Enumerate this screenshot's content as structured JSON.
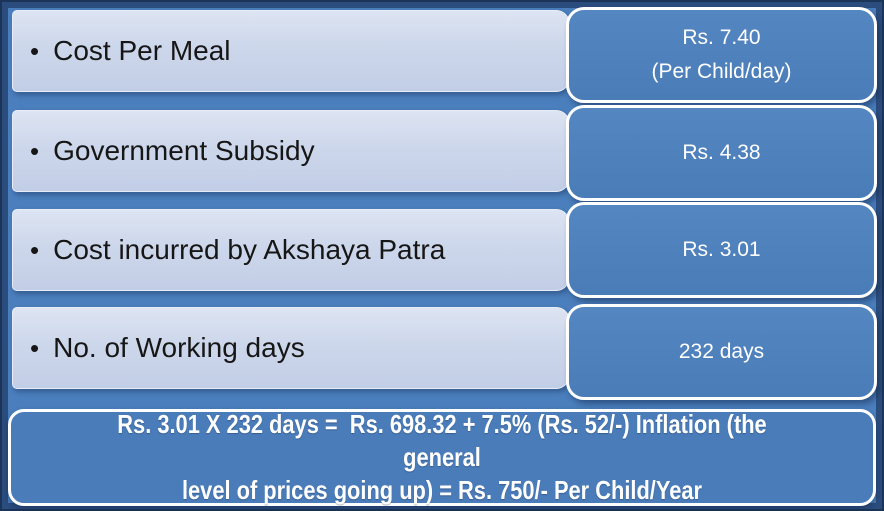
{
  "slide": {
    "bullet": "•",
    "rows": [
      {
        "label": "Cost Per Meal",
        "value_line1": "Rs. 7.40",
        "value_line2": "(Per Child/day)"
      },
      {
        "label": "Government Subsidy",
        "value_line1": "Rs. 4.38"
      },
      {
        "label": "Cost incurred by Akshaya Patra",
        "value_line1": "Rs. 3.01"
      },
      {
        "label": "No. of Working days",
        "value_line1": "232 days"
      }
    ],
    "formula": {
      "line1": "Rs. 3.01 X 232 days =  Rs. 698.32 + 7.5% (Rs. 52/-) Inflation (the general",
      "line2": "level of prices going up) = Rs. 750/- Per Child/Year"
    },
    "colors": {
      "background": "#4a7ebc",
      "frame": "#2b4d7e",
      "value_box_fill": "#4b7db9",
      "label_box_fill": "#ccd7eb",
      "value_text": "#ffffff",
      "label_text": "#161616"
    }
  }
}
